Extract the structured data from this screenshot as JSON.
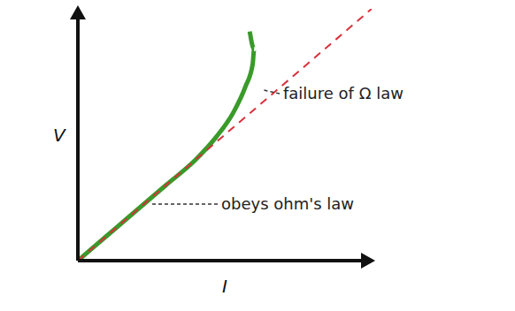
{
  "chart_data": {
    "type": "line",
    "x_label": "I",
    "y_label": "V",
    "xlim": [
      0,
      10
    ],
    "ylim": [
      0,
      10
    ],
    "tick_labels": false,
    "grid": false,
    "series": [
      {
        "color": "#3a9a2a",
        "line_style": "solid",
        "x": [
          0,
          1,
          2,
          3,
          4,
          4.7,
          5.3,
          5.7,
          5.95,
          6.0,
          5.85
        ],
        "values": [
          0,
          1,
          2,
          3,
          4,
          4.9,
          5.9,
          6.9,
          7.8,
          8.4,
          9.1
        ]
      },
      {
        "color": "#d9303a",
        "line_style": "dashed",
        "x": [
          0,
          10
        ],
        "values": [
          0,
          10
        ]
      }
    ],
    "annotations": [
      "failure of Ω law",
      "obeys ohm's law"
    ]
  }
}
